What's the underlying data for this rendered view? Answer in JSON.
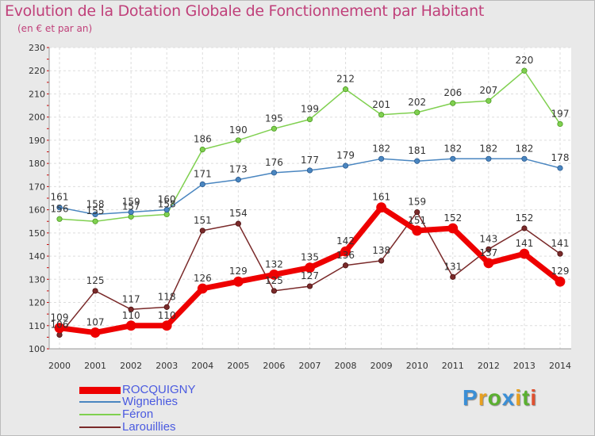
{
  "header": {
    "title": "Evolution de la Dotation Globale de Fonctionnement par Habitant",
    "subtitle": "(en € et par an)"
  },
  "logo": {
    "letters": [
      "P",
      "r",
      "o",
      "x",
      "i",
      "t",
      "i"
    ],
    "colors": [
      "#3b8fd6",
      "#e8a020",
      "#5bb030",
      "#3b8fd6",
      "#e8a020",
      "#5bb030",
      "#e05030"
    ]
  },
  "chart_data": {
    "type": "line",
    "title": "Evolution de la Dotation Globale de Fonctionnement par Habitant",
    "subtitle": "(en € et par an)",
    "xlabel": "",
    "ylabel": "",
    "x": [
      "2000",
      "2001",
      "2002",
      "2003",
      "2004",
      "2005",
      "2006",
      "2007",
      "2008",
      "2009",
      "2010",
      "2011",
      "2012",
      "2013",
      "2014"
    ],
    "ylim": [
      100,
      230
    ],
    "yticks": [
      100,
      110,
      120,
      130,
      140,
      150,
      160,
      170,
      180,
      190,
      200,
      210,
      220,
      230
    ],
    "grid": true,
    "legend": "bottom-left",
    "series": [
      {
        "name": "ROCQUIGNY",
        "color": "#ee0000",
        "values": [
          109,
          107,
          110,
          110,
          126,
          129,
          132,
          135,
          142,
          161,
          151,
          152,
          137,
          141,
          129
        ]
      },
      {
        "name": "Wignehies",
        "color": "#4a86c0",
        "values": [
          161,
          158,
          159,
          160,
          171,
          173,
          176,
          177,
          179,
          182,
          181,
          182,
          182,
          182,
          178
        ]
      },
      {
        "name": "Féron",
        "color": "#80d050",
        "values": [
          156,
          155,
          157,
          158,
          186,
          190,
          195,
          199,
          212,
          201,
          202,
          206,
          207,
          220,
          197
        ]
      },
      {
        "name": "Larouillies",
        "color": "#7a2a2a",
        "values": [
          106,
          125,
          117,
          118,
          151,
          154,
          125,
          127,
          136,
          138,
          159,
          131,
          143,
          152,
          141
        ]
      }
    ]
  }
}
